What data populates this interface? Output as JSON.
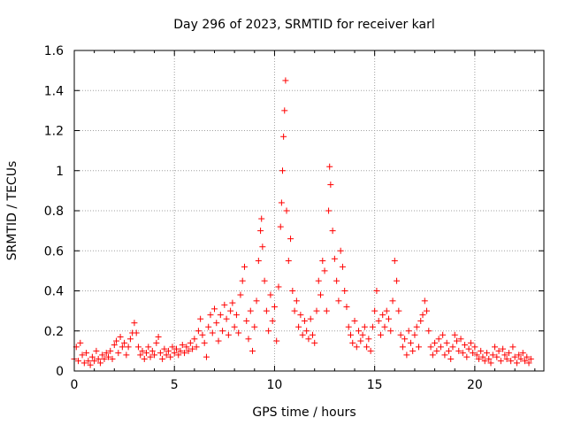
{
  "chart_data": {
    "type": "scatter",
    "title": "Day 296 of 2023, SRMTID for receiver karl",
    "xlabel": "GPS time / hours",
    "ylabel": "SRMTID / TECUs",
    "xlim": [
      0,
      23.45
    ],
    "ylim": [
      0,
      1.6
    ],
    "x_ticks": [
      0,
      5,
      10,
      15,
      20
    ],
    "x_tick_labels": [
      "0",
      "5",
      "10",
      "15",
      "20"
    ],
    "y_ticks": [
      0,
      0.2,
      0.4,
      0.6,
      0.8,
      1.0,
      1.2,
      1.4,
      1.6
    ],
    "y_tick_labels": [
      "0",
      "0.2",
      "0.4",
      "0.6",
      "0.8",
      "1",
      "1.2",
      "1.4",
      "1.6"
    ],
    "grid": true,
    "marker": "plus",
    "marker_color": "#ff0000",
    "series": [
      {
        "name": "SRMTID",
        "points": [
          [
            0.0,
            0.06
          ],
          [
            0.1,
            0.12
          ],
          [
            0.2,
            0.05
          ],
          [
            0.3,
            0.14
          ],
          [
            0.4,
            0.08
          ],
          [
            0.5,
            0.04
          ],
          [
            0.6,
            0.09
          ],
          [
            0.7,
            0.05
          ],
          [
            0.8,
            0.03
          ],
          [
            0.9,
            0.07
          ],
          [
            1.0,
            0.05
          ],
          [
            1.1,
            0.1
          ],
          [
            1.2,
            0.06
          ],
          [
            1.3,
            0.04
          ],
          [
            1.4,
            0.08
          ],
          [
            1.5,
            0.06
          ],
          [
            1.6,
            0.09
          ],
          [
            1.7,
            0.07
          ],
          [
            1.8,
            0.1
          ],
          [
            1.9,
            0.06
          ],
          [
            2.0,
            0.13
          ],
          [
            2.1,
            0.15
          ],
          [
            2.2,
            0.09
          ],
          [
            2.3,
            0.17
          ],
          [
            2.4,
            0.12
          ],
          [
            2.5,
            0.14
          ],
          [
            2.6,
            0.08
          ],
          [
            2.7,
            0.12
          ],
          [
            2.8,
            0.16
          ],
          [
            2.9,
            0.19
          ],
          [
            3.0,
            0.24
          ],
          [
            3.1,
            0.19
          ],
          [
            3.2,
            0.12
          ],
          [
            3.3,
            0.08
          ],
          [
            3.4,
            0.1
          ],
          [
            3.5,
            0.06
          ],
          [
            3.6,
            0.09
          ],
          [
            3.7,
            0.12
          ],
          [
            3.8,
            0.07
          ],
          [
            3.9,
            0.1
          ],
          [
            4.0,
            0.08
          ],
          [
            4.1,
            0.14
          ],
          [
            4.2,
            0.17
          ],
          [
            4.3,
            0.09
          ],
          [
            4.4,
            0.06
          ],
          [
            4.5,
            0.11
          ],
          [
            4.6,
            0.08
          ],
          [
            4.7,
            0.1
          ],
          [
            4.8,
            0.07
          ],
          [
            4.9,
            0.12
          ],
          [
            5.0,
            0.09
          ],
          [
            5.1,
            0.11
          ],
          [
            5.2,
            0.08
          ],
          [
            5.3,
            0.1
          ],
          [
            5.4,
            0.13
          ],
          [
            5.5,
            0.09
          ],
          [
            5.6,
            0.12
          ],
          [
            5.7,
            0.1
          ],
          [
            5.8,
            0.14
          ],
          [
            5.9,
            0.11
          ],
          [
            6.0,
            0.16
          ],
          [
            6.1,
            0.12
          ],
          [
            6.2,
            0.2
          ],
          [
            6.3,
            0.26
          ],
          [
            6.4,
            0.18
          ],
          [
            6.5,
            0.14
          ],
          [
            6.6,
            0.07
          ],
          [
            6.7,
            0.22
          ],
          [
            6.8,
            0.28
          ],
          [
            6.9,
            0.19
          ],
          [
            7.0,
            0.31
          ],
          [
            7.1,
            0.24
          ],
          [
            7.2,
            0.15
          ],
          [
            7.3,
            0.28
          ],
          [
            7.4,
            0.2
          ],
          [
            7.5,
            0.33
          ],
          [
            7.6,
            0.26
          ],
          [
            7.7,
            0.18
          ],
          [
            7.8,
            0.3
          ],
          [
            7.9,
            0.34
          ],
          [
            8.0,
            0.22
          ],
          [
            8.1,
            0.28
          ],
          [
            8.2,
            0.19
          ],
          [
            8.3,
            0.38
          ],
          [
            8.4,
            0.45
          ],
          [
            8.5,
            0.52
          ],
          [
            8.6,
            0.25
          ],
          [
            8.7,
            0.16
          ],
          [
            8.8,
            0.3
          ],
          [
            8.9,
            0.1
          ],
          [
            9.0,
            0.22
          ],
          [
            9.1,
            0.35
          ],
          [
            9.2,
            0.55
          ],
          [
            9.3,
            0.7
          ],
          [
            9.35,
            0.76
          ],
          [
            9.4,
            0.62
          ],
          [
            9.5,
            0.45
          ],
          [
            9.6,
            0.3
          ],
          [
            9.7,
            0.2
          ],
          [
            9.8,
            0.38
          ],
          [
            9.9,
            0.25
          ],
          [
            10.0,
            0.32
          ],
          [
            10.1,
            0.15
          ],
          [
            10.2,
            0.42
          ],
          [
            10.3,
            0.72
          ],
          [
            10.35,
            0.84
          ],
          [
            10.4,
            1.0
          ],
          [
            10.45,
            1.17
          ],
          [
            10.5,
            1.3
          ],
          [
            10.55,
            1.45
          ],
          [
            10.6,
            0.8
          ],
          [
            10.7,
            0.55
          ],
          [
            10.8,
            0.66
          ],
          [
            10.9,
            0.4
          ],
          [
            11.0,
            0.3
          ],
          [
            11.1,
            0.35
          ],
          [
            11.2,
            0.22
          ],
          [
            11.3,
            0.28
          ],
          [
            11.4,
            0.18
          ],
          [
            11.5,
            0.25
          ],
          [
            11.6,
            0.2
          ],
          [
            11.7,
            0.16
          ],
          [
            11.8,
            0.26
          ],
          [
            11.9,
            0.18
          ],
          [
            12.0,
            0.14
          ],
          [
            12.1,
            0.3
          ],
          [
            12.2,
            0.45
          ],
          [
            12.3,
            0.38
          ],
          [
            12.4,
            0.55
          ],
          [
            12.5,
            0.5
          ],
          [
            12.6,
            0.3
          ],
          [
            12.7,
            0.8
          ],
          [
            12.75,
            1.02
          ],
          [
            12.8,
            0.93
          ],
          [
            12.9,
            0.7
          ],
          [
            13.0,
            0.56
          ],
          [
            13.1,
            0.45
          ],
          [
            13.2,
            0.35
          ],
          [
            13.3,
            0.6
          ],
          [
            13.4,
            0.52
          ],
          [
            13.5,
            0.4
          ],
          [
            13.6,
            0.32
          ],
          [
            13.7,
            0.22
          ],
          [
            13.8,
            0.18
          ],
          [
            13.9,
            0.14
          ],
          [
            14.0,
            0.25
          ],
          [
            14.1,
            0.12
          ],
          [
            14.2,
            0.2
          ],
          [
            14.3,
            0.15
          ],
          [
            14.4,
            0.18
          ],
          [
            14.5,
            0.22
          ],
          [
            14.6,
            0.12
          ],
          [
            14.7,
            0.16
          ],
          [
            14.8,
            0.1
          ],
          [
            14.9,
            0.22
          ],
          [
            15.0,
            0.3
          ],
          [
            15.1,
            0.4
          ],
          [
            15.2,
            0.25
          ],
          [
            15.3,
            0.18
          ],
          [
            15.4,
            0.28
          ],
          [
            15.5,
            0.22
          ],
          [
            15.6,
            0.3
          ],
          [
            15.7,
            0.26
          ],
          [
            15.8,
            0.2
          ],
          [
            15.9,
            0.35
          ],
          [
            16.0,
            0.55
          ],
          [
            16.1,
            0.45
          ],
          [
            16.2,
            0.3
          ],
          [
            16.3,
            0.18
          ],
          [
            16.4,
            0.12
          ],
          [
            16.5,
            0.16
          ],
          [
            16.6,
            0.08
          ],
          [
            16.7,
            0.2
          ],
          [
            16.8,
            0.14
          ],
          [
            16.9,
            0.1
          ],
          [
            17.0,
            0.18
          ],
          [
            17.1,
            0.22
          ],
          [
            17.2,
            0.12
          ],
          [
            17.3,
            0.25
          ],
          [
            17.4,
            0.28
          ],
          [
            17.5,
            0.35
          ],
          [
            17.6,
            0.3
          ],
          [
            17.7,
            0.2
          ],
          [
            17.8,
            0.12
          ],
          [
            17.9,
            0.08
          ],
          [
            18.0,
            0.14
          ],
          [
            18.1,
            0.1
          ],
          [
            18.2,
            0.16
          ],
          [
            18.3,
            0.12
          ],
          [
            18.4,
            0.18
          ],
          [
            18.5,
            0.08
          ],
          [
            18.6,
            0.14
          ],
          [
            18.7,
            0.1
          ],
          [
            18.8,
            0.06
          ],
          [
            18.9,
            0.12
          ],
          [
            19.0,
            0.18
          ],
          [
            19.1,
            0.15
          ],
          [
            19.2,
            0.1
          ],
          [
            19.3,
            0.16
          ],
          [
            19.4,
            0.09
          ],
          [
            19.5,
            0.13
          ],
          [
            19.6,
            0.07
          ],
          [
            19.7,
            0.11
          ],
          [
            19.8,
            0.14
          ],
          [
            19.9,
            0.09
          ],
          [
            20.0,
            0.12
          ],
          [
            20.1,
            0.08
          ],
          [
            20.2,
            0.06
          ],
          [
            20.3,
            0.1
          ],
          [
            20.4,
            0.07
          ],
          [
            20.5,
            0.05
          ],
          [
            20.6,
            0.09
          ],
          [
            20.7,
            0.06
          ],
          [
            20.8,
            0.04
          ],
          [
            20.9,
            0.08
          ],
          [
            21.0,
            0.12
          ],
          [
            21.1,
            0.07
          ],
          [
            21.2,
            0.1
          ],
          [
            21.3,
            0.05
          ],
          [
            21.4,
            0.11
          ],
          [
            21.5,
            0.08
          ],
          [
            21.6,
            0.06
          ],
          [
            21.7,
            0.09
          ],
          [
            21.8,
            0.05
          ],
          [
            21.9,
            0.12
          ],
          [
            22.0,
            0.07
          ],
          [
            22.1,
            0.04
          ],
          [
            22.2,
            0.08
          ],
          [
            22.3,
            0.06
          ],
          [
            22.4,
            0.09
          ],
          [
            22.5,
            0.05
          ],
          [
            22.6,
            0.07
          ],
          [
            22.7,
            0.04
          ],
          [
            22.8,
            0.06
          ]
        ]
      }
    ]
  }
}
